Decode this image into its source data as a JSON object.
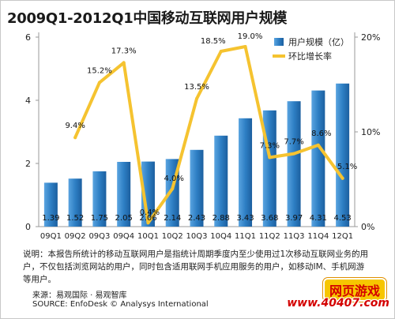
{
  "chart_data": {
    "type": "bar",
    "title": "2009Q1-2012Q1中国移动互联网用户规模",
    "categories": [
      "09Q1",
      "09Q2",
      "09Q3",
      "09Q4",
      "10Q1",
      "10Q2",
      "10Q3",
      "10Q4",
      "11Q1",
      "11Q2",
      "11Q3",
      "11Q4",
      "12Q1"
    ],
    "series": [
      {
        "name": "用户规模（亿）",
        "type": "bar",
        "axis": "left",
        "color": "#2e7fc4",
        "values": [
          1.39,
          1.52,
          1.75,
          2.05,
          2.06,
          2.14,
          2.43,
          2.88,
          3.43,
          3.68,
          3.97,
          4.31,
          4.53
        ],
        "labels": [
          "1.39",
          "1.52",
          "1.75",
          "2.05",
          "2.06",
          "2.14",
          "2.43",
          "2.88",
          "3.43",
          "3.68",
          "3.97",
          "4.31",
          "4.53"
        ]
      },
      {
        "name": "环比增长率",
        "type": "line",
        "axis": "right",
        "color": "#f5c330",
        "values": [
          null,
          9.4,
          15.2,
          17.3,
          0.4,
          4.0,
          13.5,
          18.5,
          19.0,
          7.3,
          7.7,
          8.6,
          5.1
        ],
        "labels": [
          "",
          "9.4%",
          "15.2%",
          "17.3%",
          "0.4%",
          "4.0%",
          "13.5%",
          "18.5%",
          "19.0%",
          "7.3%",
          "7.7%",
          "8.6%",
          "5.1%"
        ]
      }
    ],
    "y_left": {
      "min": 0,
      "max": 6,
      "ticks": [
        "0",
        "2",
        "4",
        "6"
      ],
      "tick_values": [
        0,
        2,
        4,
        6
      ]
    },
    "y_right": {
      "min": 0,
      "max": 20,
      "ticks": [
        "0%",
        "10%",
        "20%"
      ],
      "tick_values": [
        0,
        10,
        20
      ]
    },
    "grid": false,
    "legend": "top-right"
  },
  "note": "说明：本报告所统计的移动互联网用户是指统计周期季度内至少使用过1次移动互联网业务的用户，不仅包括浏览网站的用户，同时包含适用联网手机应用服务的用户，如移动IM、手机网游等用户。",
  "source_cn": "来源：易观国际 · 易观智库",
  "source_en": "SOURCE: EnfoDesk © Analysys International",
  "watermark": {
    "top": "网页游戏",
    "bottom": "www.40407.com"
  }
}
